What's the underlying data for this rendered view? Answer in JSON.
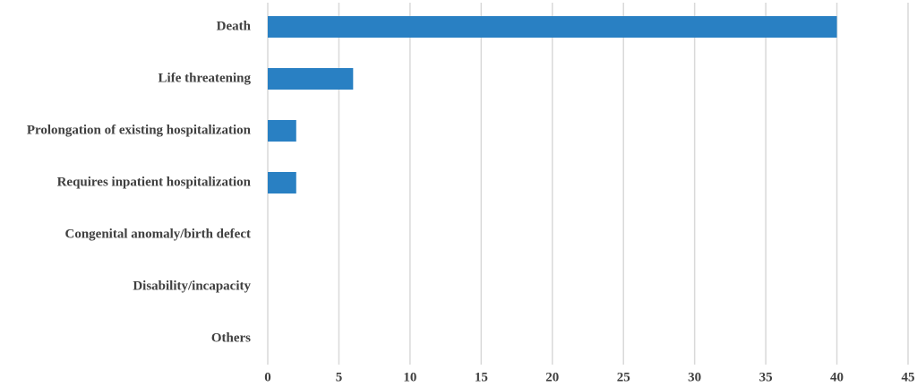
{
  "chart_data": {
    "type": "bar",
    "orientation": "horizontal",
    "categories": [
      "Death",
      "Life threatening",
      "Prolongation of existing hospitalization",
      "Requires inpatient hospitalization",
      "Congenital anomaly/birth defect",
      "Disability/incapacity",
      "Others"
    ],
    "values": [
      40,
      6,
      2,
      2,
      0,
      0,
      0
    ],
    "color": "#2980c3",
    "xlim": [
      0,
      45
    ],
    "xticks": [
      0,
      5,
      10,
      15,
      20,
      25,
      30,
      35,
      40,
      45
    ],
    "grid": true
  }
}
